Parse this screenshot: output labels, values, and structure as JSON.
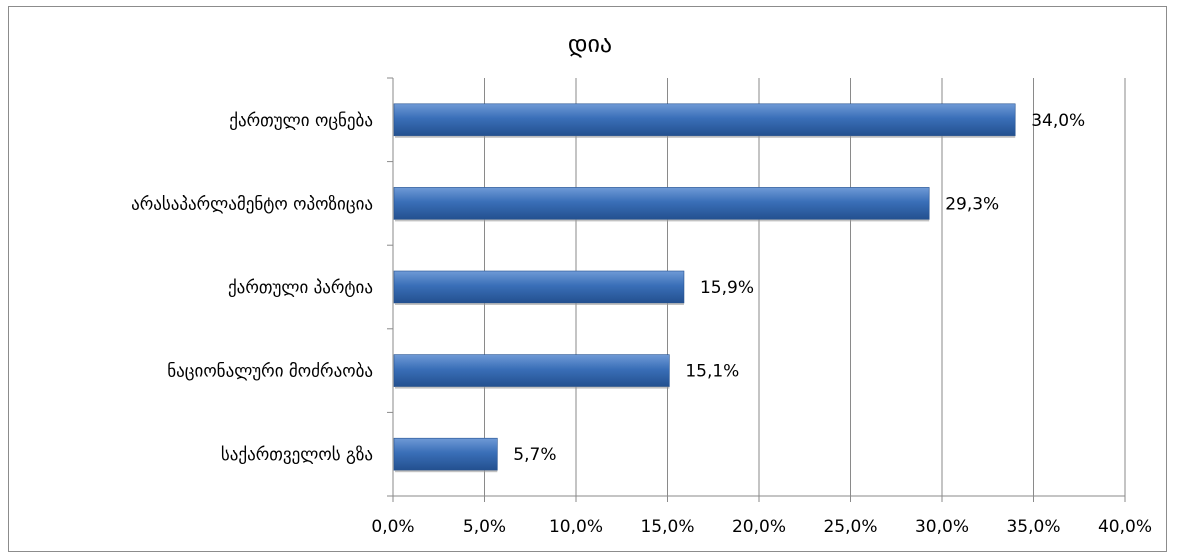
{
  "chart_data": {
    "type": "bar",
    "orientation": "horizontal",
    "title": "დია",
    "categories": [
      "ქართული ოცნება",
      "არასაპარლამენტო ოპოზიცია",
      "ქართული პარტია",
      "ნაციონალური მოძრაობა",
      "საქართველოს გზა"
    ],
    "values": [
      34.0,
      29.3,
      15.9,
      15.1,
      5.7
    ],
    "data_labels": [
      "34,0%",
      "29,3%",
      "15,9%",
      "15,1%",
      "5,7%"
    ],
    "x_ticks": [
      "0,0%",
      "5,0%",
      "10,0%",
      "15,0%",
      "20,0%",
      "25,0%",
      "30,0%",
      "35,0%",
      "40,0%"
    ],
    "xlim": [
      0,
      40
    ],
    "xlabel": "",
    "ylabel": "",
    "grid": "vertical",
    "legend": "none",
    "bar_color": "#3a6fb8",
    "bar_color_light": "#6f9ad6",
    "bar_color_dark": "#23508f"
  }
}
